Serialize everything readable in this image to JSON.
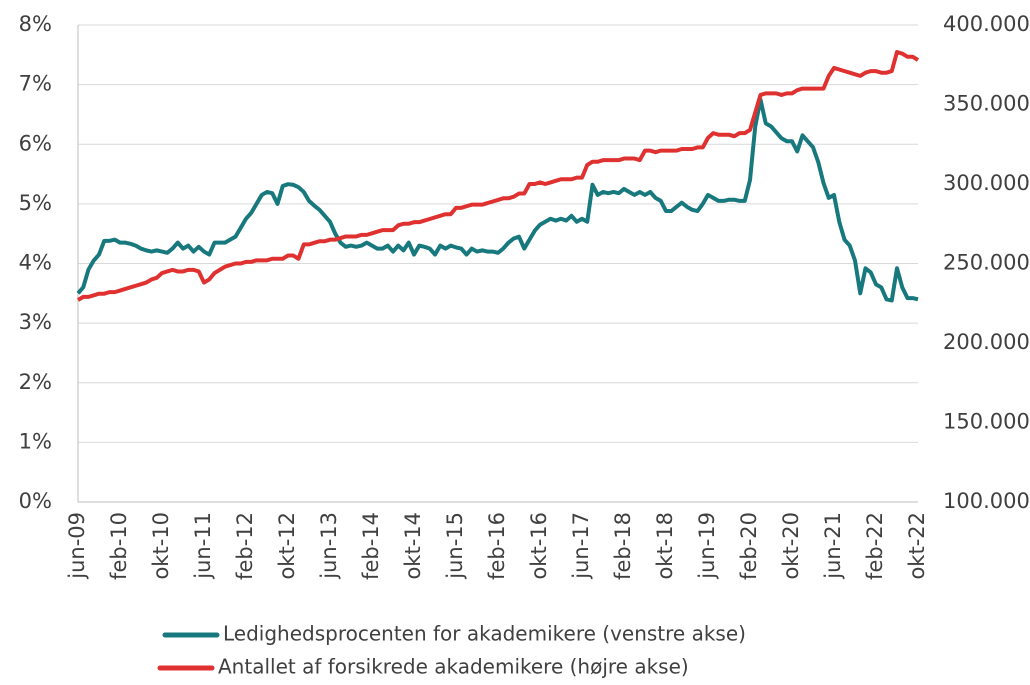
{
  "chart_data": {
    "type": "line",
    "categories": [
      "jun-09",
      null,
      null,
      null,
      null,
      null,
      null,
      null,
      "feb-10",
      null,
      null,
      null,
      null,
      null,
      null,
      null,
      "okt-10",
      null,
      null,
      null,
      null,
      null,
      null,
      null,
      "jun-11",
      null,
      null,
      null,
      null,
      null,
      null,
      null,
      "feb-12",
      null,
      null,
      null,
      null,
      null,
      null,
      null,
      "okt-12",
      null,
      null,
      null,
      null,
      null,
      null,
      null,
      "jun-13",
      null,
      null,
      null,
      null,
      null,
      null,
      null,
      "feb-14",
      null,
      null,
      null,
      null,
      null,
      null,
      null,
      "okt-14",
      null,
      null,
      null,
      null,
      null,
      null,
      null,
      "jun-15",
      null,
      null,
      null,
      null,
      null,
      null,
      null,
      "feb-16",
      null,
      null,
      null,
      null,
      null,
      null,
      null,
      "okt-16",
      null,
      null,
      null,
      null,
      null,
      null,
      null,
      "jun-17",
      null,
      null,
      null,
      null,
      null,
      null,
      null,
      "feb-18",
      null,
      null,
      null,
      null,
      null,
      null,
      null,
      "okt-18",
      null,
      null,
      null,
      null,
      null,
      null,
      null,
      "jun-19",
      null,
      null,
      null,
      null,
      null,
      null,
      null,
      "feb-20",
      null,
      null,
      null,
      null,
      null,
      null,
      null,
      "okt-20",
      null,
      null,
      null,
      null,
      null,
      null,
      null,
      "jun-21",
      null,
      null,
      null,
      null,
      null,
      null,
      null,
      "feb-22",
      null,
      null,
      null,
      null,
      null,
      null,
      null,
      "okt-22"
    ],
    "series": [
      {
        "name": "Ledighedsprocenten for akademikere (venstre akse)",
        "color": "#17787e",
        "values": [
          3.5,
          3.6,
          3.9,
          4.05,
          4.15,
          4.38,
          4.38,
          4.4,
          4.35,
          4.35,
          4.33,
          4.3,
          4.25,
          4.22,
          4.2,
          4.22,
          4.2,
          4.18,
          4.25,
          4.35,
          4.25,
          4.3,
          4.2,
          4.28,
          4.2,
          4.15,
          4.35,
          4.35,
          4.35,
          4.4,
          4.45,
          4.6,
          4.75,
          4.85,
          5.0,
          5.15,
          5.2,
          5.18,
          5.0,
          5.3,
          5.33,
          5.32,
          5.28,
          5.2,
          5.05,
          4.97,
          4.9,
          4.8,
          4.7,
          4.5,
          4.35,
          4.28,
          4.3,
          4.28,
          4.3,
          4.35,
          4.3,
          4.25,
          4.25,
          4.3,
          4.2,
          4.3,
          4.22,
          4.35,
          4.15,
          4.3,
          4.28,
          4.25,
          4.15,
          4.3,
          4.25,
          4.3,
          4.27,
          4.25,
          4.15,
          4.25,
          4.2,
          4.22,
          4.2,
          4.2,
          4.18,
          4.25,
          4.35,
          4.42,
          4.45,
          4.25,
          4.4,
          4.55,
          4.65,
          4.7,
          4.75,
          4.72,
          4.75,
          4.72,
          4.8,
          4.7,
          4.75,
          4.7,
          5.32,
          5.15,
          5.2,
          5.18,
          5.2,
          5.18,
          5.25,
          5.2,
          5.15,
          5.2,
          5.15,
          5.2,
          5.1,
          5.05,
          4.88,
          4.88,
          4.95,
          5.02,
          4.95,
          4.9,
          4.88,
          5.0,
          5.15,
          5.1,
          5.05,
          5.05,
          5.07,
          5.07,
          5.05,
          5.05,
          5.4,
          6.3,
          6.75,
          6.35,
          6.3,
          6.2,
          6.1,
          6.05,
          6.05,
          5.88,
          6.15,
          6.05,
          5.95,
          5.7,
          5.35,
          5.1,
          5.15,
          4.7,
          4.4,
          4.3,
          4.05,
          3.5,
          3.92,
          3.85,
          3.65,
          3.6,
          3.4,
          3.38,
          3.92,
          3.6,
          3.42,
          3.42,
          3.4
        ]
      },
      {
        "name": "Antallet af forsikrede akademikere (højre akse)",
        "color": "#e03131",
        "axis": "y2",
        "values": [
          227000,
          229000,
          229000,
          230000,
          231000,
          231000,
          232000,
          232000,
          233000,
          234000,
          235000,
          236000,
          237000,
          238000,
          240000,
          241000,
          244000,
          245000,
          246000,
          245000,
          245000,
          246000,
          246000,
          245000,
          238000,
          240000,
          244000,
          246000,
          248000,
          249000,
          250000,
          250000,
          251000,
          251000,
          252000,
          252000,
          252000,
          253000,
          253000,
          253000,
          255000,
          255000,
          253000,
          262000,
          262000,
          263000,
          264000,
          264000,
          265000,
          265000,
          266000,
          267000,
          267000,
          267000,
          268000,
          268000,
          269000,
          270000,
          271000,
          271000,
          271000,
          274000,
          275000,
          275000,
          276000,
          276000,
          277000,
          278000,
          279000,
          280000,
          281000,
          281000,
          285000,
          285000,
          286000,
          287000,
          287000,
          287000,
          288000,
          289000,
          290000,
          291000,
          291000,
          292000,
          294000,
          294000,
          300000,
          300000,
          301000,
          300000,
          301000,
          302000,
          303000,
          303000,
          303000,
          304000,
          304000,
          312000,
          314000,
          314000,
          315000,
          315000,
          315000,
          315000,
          316000,
          316000,
          316000,
          315000,
          321000,
          321000,
          320000,
          321000,
          321000,
          321000,
          321000,
          322000,
          322000,
          322000,
          323000,
          323000,
          329000,
          332000,
          331000,
          331000,
          331000,
          330000,
          332000,
          332000,
          334000,
          345000,
          356000,
          357000,
          357000,
          357000,
          356000,
          357000,
          357000,
          359000,
          360000,
          360000,
          360000,
          360000,
          360000,
          368000,
          373000,
          372000,
          371000,
          370000,
          369000,
          368000,
          370000,
          371000,
          371000,
          370000,
          370000,
          371000,
          383000,
          382000,
          380000,
          380000,
          378000
        ]
      }
    ],
    "ylim": [
      0,
      8
    ],
    "yticks": [
      {
        "value": 0,
        "label": "0%"
      },
      {
        "value": 1,
        "label": "1%"
      },
      {
        "value": 2,
        "label": "2%"
      },
      {
        "value": 3,
        "label": "3%"
      },
      {
        "value": 4,
        "label": "4%"
      },
      {
        "value": 5,
        "label": "5%"
      },
      {
        "value": 6,
        "label": "6%"
      },
      {
        "value": 7,
        "label": "7%"
      },
      {
        "value": 8,
        "label": "8%"
      }
    ],
    "y2lim": [
      100000,
      400000
    ],
    "y2ticks": [
      {
        "value": 100000,
        "label": "100.000"
      },
      {
        "value": 150000,
        "label": "150.000"
      },
      {
        "value": 200000,
        "label": "200.000"
      },
      {
        "value": 250000,
        "label": "250.000"
      },
      {
        "value": 300000,
        "label": "300.000"
      },
      {
        "value": 350000,
        "label": "350.000"
      },
      {
        "value": 400000,
        "label": "400.000"
      }
    ],
    "grid": true,
    "legend": "bottom"
  }
}
